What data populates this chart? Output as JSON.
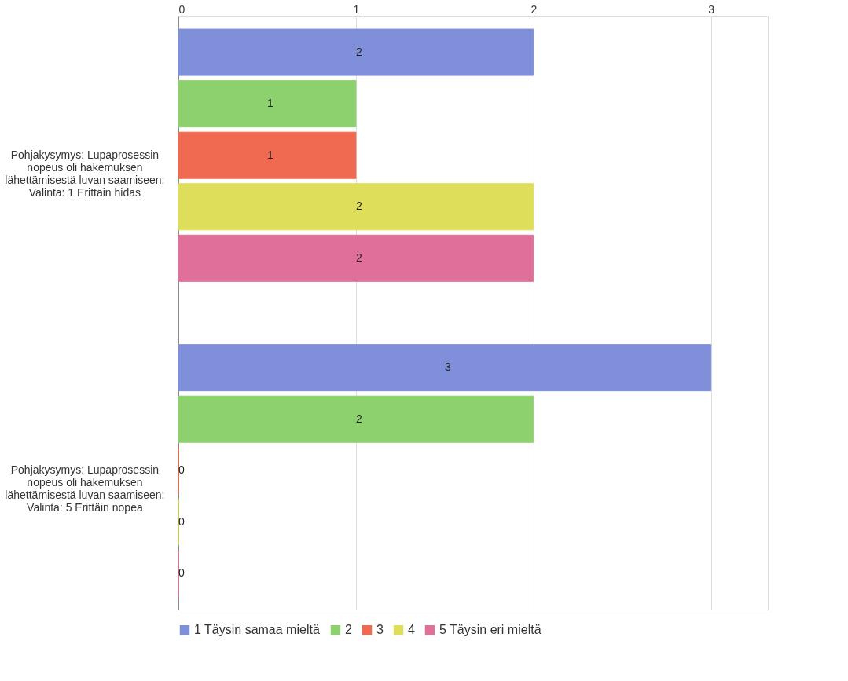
{
  "chart_data": {
    "type": "bar",
    "orientation": "horizontal",
    "categories": [
      "Pohjakysymys: Lupaprosessin nopeus oli hakemuksen lähettämisestä luvan saamiseen: Valinta: 1 Erittäin hidas",
      "Pohjakysymys: Lupaprosessin nopeus oli hakemuksen lähettämisestä luvan saamiseen: Valinta: 5 Erittäin nopea"
    ],
    "series": [
      {
        "name": "1 Täysin samaa mieltä",
        "color": "#7f8fd9",
        "values": [
          2,
          3
        ]
      },
      {
        "name": "2",
        "color": "#8dd16e",
        "values": [
          1,
          2
        ]
      },
      {
        "name": "3",
        "color": "#ef6a50",
        "values": [
          1,
          0
        ]
      },
      {
        "name": "4",
        "color": "#dede5a",
        "values": [
          2,
          0
        ]
      },
      {
        "name": "5 Täysin eri mieltä",
        "color": "#e0709a",
        "values": [
          2,
          0
        ]
      }
    ],
    "xlim": [
      0,
      3.32
    ],
    "xticks": [
      0,
      1,
      2,
      3
    ],
    "grid": "x",
    "legend": "bottom",
    "data_labels": true
  }
}
